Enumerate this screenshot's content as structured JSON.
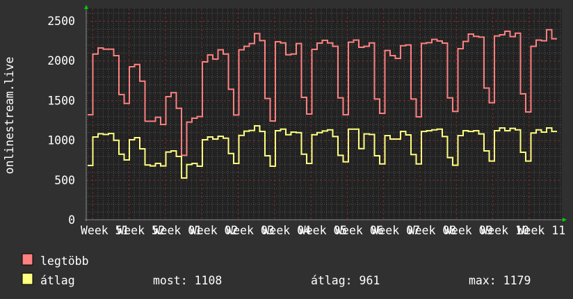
{
  "chart_data": {
    "type": "line",
    "step": true,
    "ylabel": "onlinestream.live",
    "xlabel": "",
    "ylim": [
      0,
      2650
    ],
    "yticks": [
      "0",
      "500",
      "1000",
      "1500",
      "2000",
      "2500"
    ],
    "ytick_values": [
      0,
      500,
      1000,
      1500,
      2000,
      2500
    ],
    "xticks": [
      "Week 51",
      "Week 52",
      "Week 01",
      "Week 02",
      "Week 03",
      "Week 04",
      "Week 05",
      "Week 06",
      "Week 07",
      "Week 08",
      "Week 09",
      "Week 10",
      "Week 11"
    ],
    "grid": true,
    "legend_placement": "bottom-left",
    "series": [
      {
        "name": "legtöbb",
        "color": "#ff8080",
        "values": [
          1320,
          2083,
          2159,
          2144,
          2144,
          2063,
          1573,
          1462,
          1923,
          1952,
          1742,
          1238,
          1238,
          1288,
          1198,
          1547,
          1597,
          1401,
          810,
          1227,
          1276,
          1297,
          1984,
          2072,
          2019,
          2136,
          2083,
          1640,
          1317,
          2136,
          2180,
          2215,
          2340,
          2252,
          1524,
          1241,
          2238,
          2223,
          2074,
          2083,
          2215,
          1538,
          1329,
          2142,
          2220,
          2255,
          2223,
          2180,
          1532,
          1320,
          2232,
          2258,
          2168,
          2180,
          2223,
          1518,
          1337,
          2127,
          2063,
          2028,
          2188,
          2197,
          1518,
          1294,
          2217,
          2226,
          2267,
          2247,
          2220,
          1532,
          1361,
          2150,
          2241,
          2334,
          2305,
          2296,
          1655,
          1471,
          2310,
          2325,
          2369,
          2302,
          2345,
          1582,
          1355,
          2180,
          2258,
          2250,
          2389,
          2275
        ]
      },
      {
        "name": "átlag",
        "color": "#ffff80",
        "values": [
          682,
          1040,
          1081,
          1072,
          1084,
          999,
          824,
          752,
          1005,
          1031,
          892,
          688,
          676,
          708,
          676,
          851,
          865,
          795,
          524,
          694,
          708,
          673,
          1005,
          1040,
          1014,
          1049,
          1025,
          833,
          708,
          1060,
          1113,
          1122,
          1180,
          1110,
          804,
          673,
          1119,
          1139,
          1069,
          1101,
          1095,
          824,
          708,
          1069,
          1095,
          1116,
          1130,
          1046,
          810,
          728,
          1139,
          1139,
          894,
          1078,
          1072,
          804,
          702,
          1058,
          1014,
          1014,
          1110,
          1066,
          819,
          702,
          1110,
          1119,
          1130,
          1139,
          1046,
          781,
          685,
          1058,
          1119,
          1110,
          1119,
          1078,
          865,
          737,
          1119,
          1154,
          1119,
          1148,
          1130,
          848,
          737,
          1090,
          1130,
          1101,
          1154,
          1110
        ]
      }
    ]
  },
  "legend": {
    "items": [
      {
        "label": "legtöbb",
        "color": "#ff8080"
      },
      {
        "label": "átlag",
        "color": "#ffff80"
      }
    ],
    "stats": {
      "most": "most: 1108",
      "atlag": "átlag: 961",
      "max": "max: 1179"
    }
  },
  "colors": {
    "background": "#303030",
    "plot_background": "#222222",
    "minor_grid": "#555555",
    "major_grid": "#7a2f2f",
    "axis_arrow": "#00cc00"
  }
}
